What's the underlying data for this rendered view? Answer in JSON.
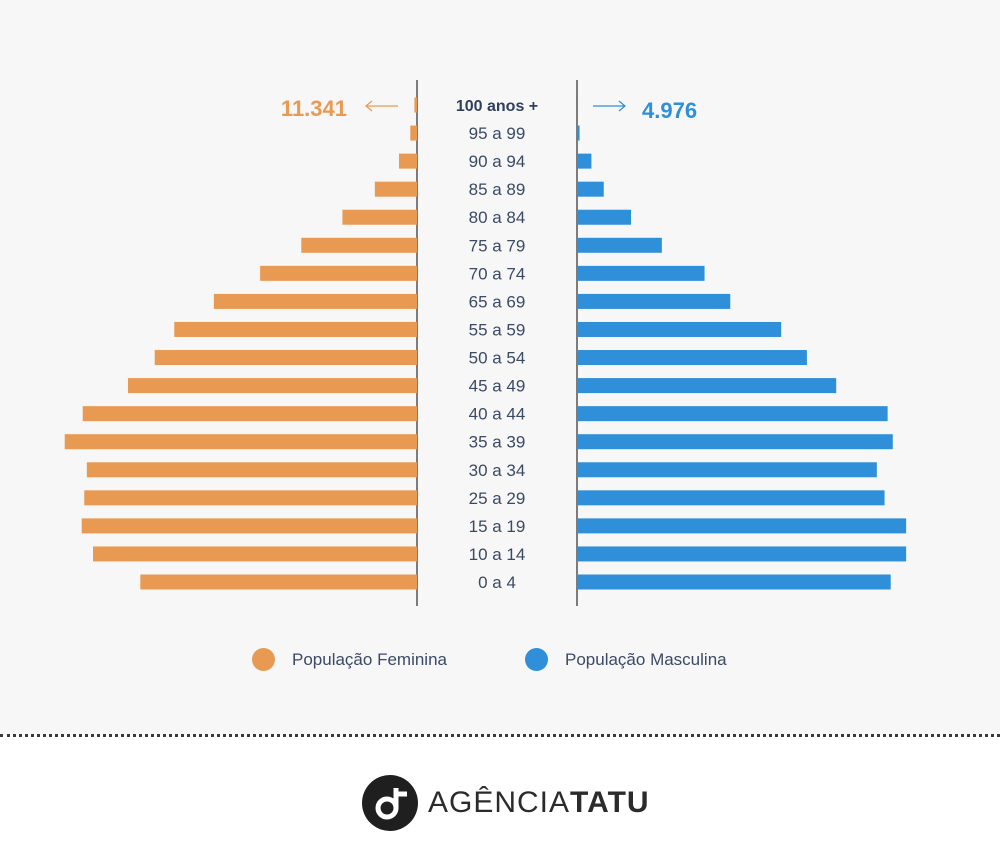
{
  "chart_data": {
    "type": "bar",
    "orientation": "horizontal-pyramid",
    "categories": [
      "100 anos +",
      "95 a 99",
      "90 a 94",
      "85 a 89",
      "80 a 84",
      "75 a 79",
      "70 a 74",
      "65 a 69",
      "55 a 59",
      "50 a 54",
      "45 a 49",
      "40 a 44",
      "35 a 39",
      "30 a 34",
      "25 a 29",
      "15 a 19",
      "10 a 14",
      "0 a 4"
    ],
    "series": [
      {
        "name": "População Feminina",
        "side": "left",
        "color": "#e99a52",
        "values": [
          0.05,
          0.13,
          0.35,
          0.82,
          1.45,
          2.25,
          3.05,
          3.95,
          4.72,
          5.1,
          5.62,
          6.5,
          6.85,
          6.42,
          6.47,
          6.52,
          6.3,
          5.38
        ]
      },
      {
        "name": "População Masculina",
        "side": "right",
        "color": "#2f8fd8",
        "values": [
          0.02,
          0.05,
          0.28,
          0.52,
          1.05,
          1.65,
          2.48,
          2.98,
          3.97,
          4.47,
          5.04,
          6.04,
          6.14,
          5.83,
          5.98,
          6.4,
          6.4,
          6.1
        ]
      }
    ],
    "xlim": [
      0,
      7
    ],
    "annotations": {
      "female_top": "11.341",
      "male_top": "4.976"
    }
  },
  "legend": {
    "female_label": "População Feminina",
    "male_label": "População Masculina",
    "female_color": "#e99a52",
    "male_color": "#2f8fd8"
  },
  "brand": {
    "name_light": "AGÊNCIA",
    "name_bold": "TATU",
    "logo_icon": "tatu-logo-icon"
  }
}
